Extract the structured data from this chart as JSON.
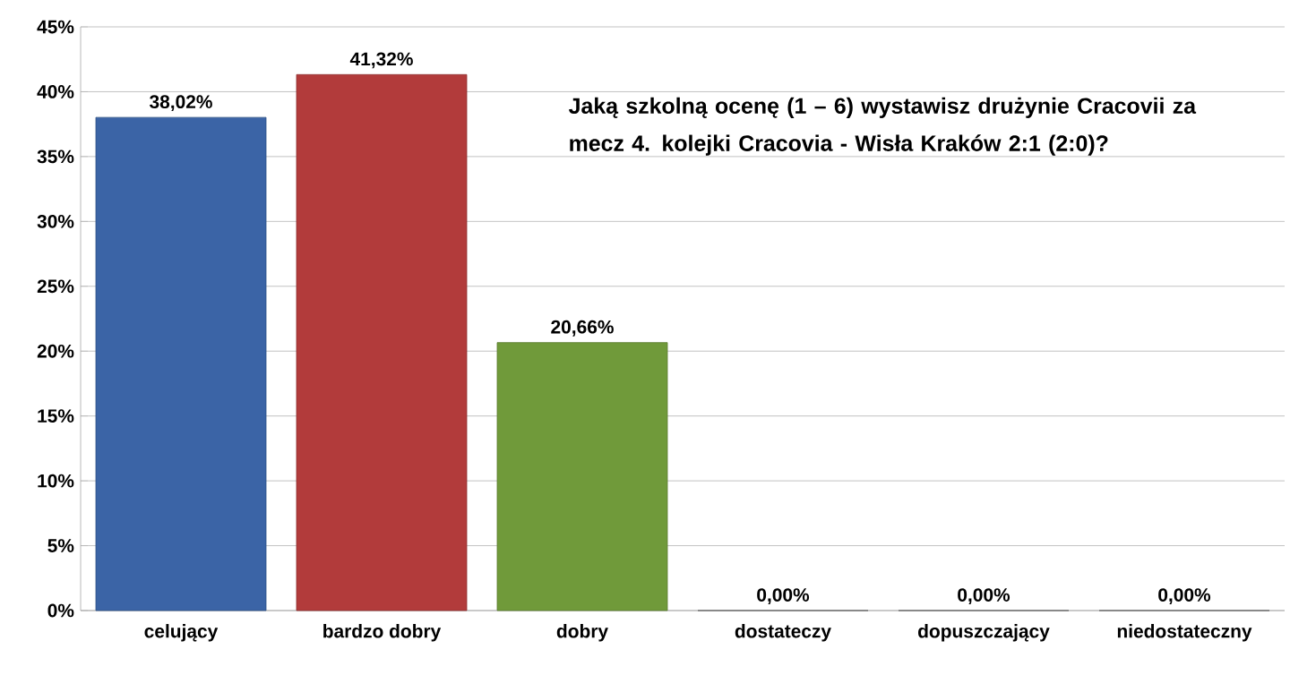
{
  "chart_data": {
    "type": "bar",
    "title": "Jaką szkolną ocenę (1 – 6) wystawisz drużynie Cracovii za mecz 4. kolejki  Cracovia - Wisła Kraków 2:1 (2:0)?",
    "categories": [
      "celujący",
      "bardzo dobry",
      "dobry",
      "dostateczy",
      "dopuszczający",
      "niedostateczny"
    ],
    "values": [
      38.02,
      41.32,
      20.66,
      0,
      0,
      0
    ],
    "value_labels": [
      "38,02%",
      "41,32%",
      "20,66%",
      "0,00%",
      "0,00%",
      "0,00%"
    ],
    "colors": [
      "#3b64a6",
      "#b23b3b",
      "#709a3a",
      "#7f7f7f",
      "#7f7f7f",
      "#7f7f7f"
    ],
    "ylim": [
      0,
      45
    ],
    "yticks": [
      {
        "value": 0,
        "label": "0%"
      },
      {
        "value": 5,
        "label": "5%"
      },
      {
        "value": 10,
        "label": "10%"
      },
      {
        "value": 15,
        "label": "15%"
      },
      {
        "value": 20,
        "label": "20%"
      },
      {
        "value": 25,
        "label": "25%"
      },
      {
        "value": 30,
        "label": "30%"
      },
      {
        "value": 35,
        "label": "35%"
      },
      {
        "value": 40,
        "label": "40%"
      },
      {
        "value": 45,
        "label": "45%"
      }
    ],
    "grid": "y"
  }
}
